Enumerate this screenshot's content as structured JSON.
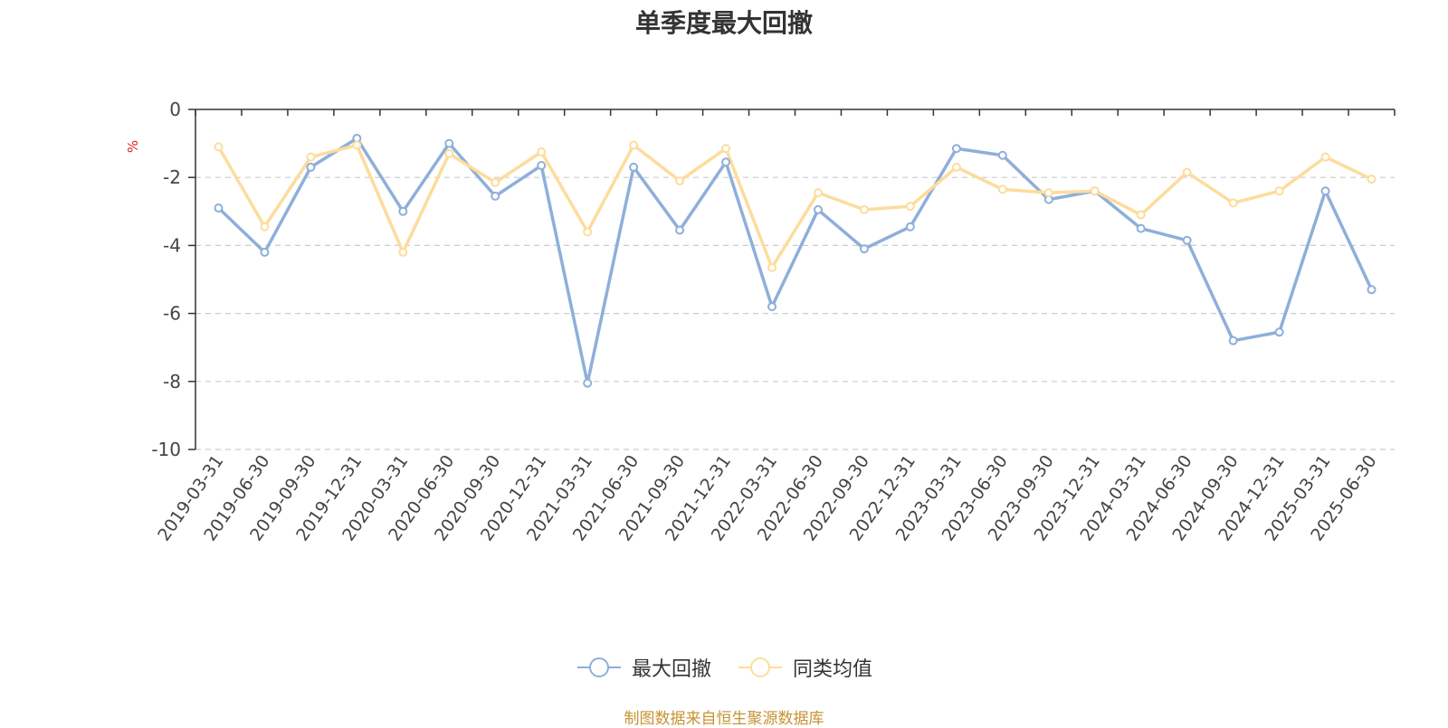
{
  "chart_data": {
    "type": "line",
    "title": "单季度最大回撤",
    "ylabel": "%",
    "xlabel": "",
    "ylim": [
      -10,
      0
    ],
    "yticks": [
      0,
      -2,
      -4,
      -6,
      -8,
      -10
    ],
    "grid": true,
    "legend_position": "bottom",
    "categories": [
      "2019-03-31",
      "2019-06-30",
      "2019-09-30",
      "2019-12-31",
      "2020-03-31",
      "2020-06-30",
      "2020-09-30",
      "2020-12-31",
      "2021-03-31",
      "2021-06-30",
      "2021-09-30",
      "2021-12-31",
      "2022-03-31",
      "2022-06-30",
      "2022-09-30",
      "2022-12-31",
      "2023-03-31",
      "2023-06-30",
      "2023-09-30",
      "2023-12-31",
      "2024-03-31",
      "2024-06-30",
      "2024-09-30",
      "2024-12-31",
      "2025-03-31",
      "2025-06-30"
    ],
    "series": [
      {
        "name": "最大回撤",
        "color": "#8eafd9",
        "values": [
          -2.9,
          -4.2,
          -1.7,
          -0.85,
          -3.0,
          -1.0,
          -2.55,
          -1.65,
          -8.05,
          -1.7,
          -3.55,
          -1.55,
          -5.8,
          -2.95,
          -4.1,
          -3.45,
          -1.15,
          -1.35,
          -2.65,
          -2.4,
          -3.5,
          -3.85,
          -6.8,
          -6.55,
          -2.4,
          -5.3
        ]
      },
      {
        "name": "同类均值",
        "color": "#fddc9c",
        "values": [
          -1.1,
          -3.45,
          -1.4,
          -1.05,
          -4.2,
          -1.3,
          -2.15,
          -1.25,
          -3.6,
          -1.05,
          -2.1,
          -1.15,
          -4.65,
          -2.45,
          -2.95,
          -2.85,
          -1.7,
          -2.35,
          -2.45,
          -2.4,
          -3.1,
          -1.85,
          -2.75,
          -2.4,
          -1.4,
          -2.05
        ]
      }
    ],
    "source_note": "制图数据来自恒生聚源数据库"
  }
}
